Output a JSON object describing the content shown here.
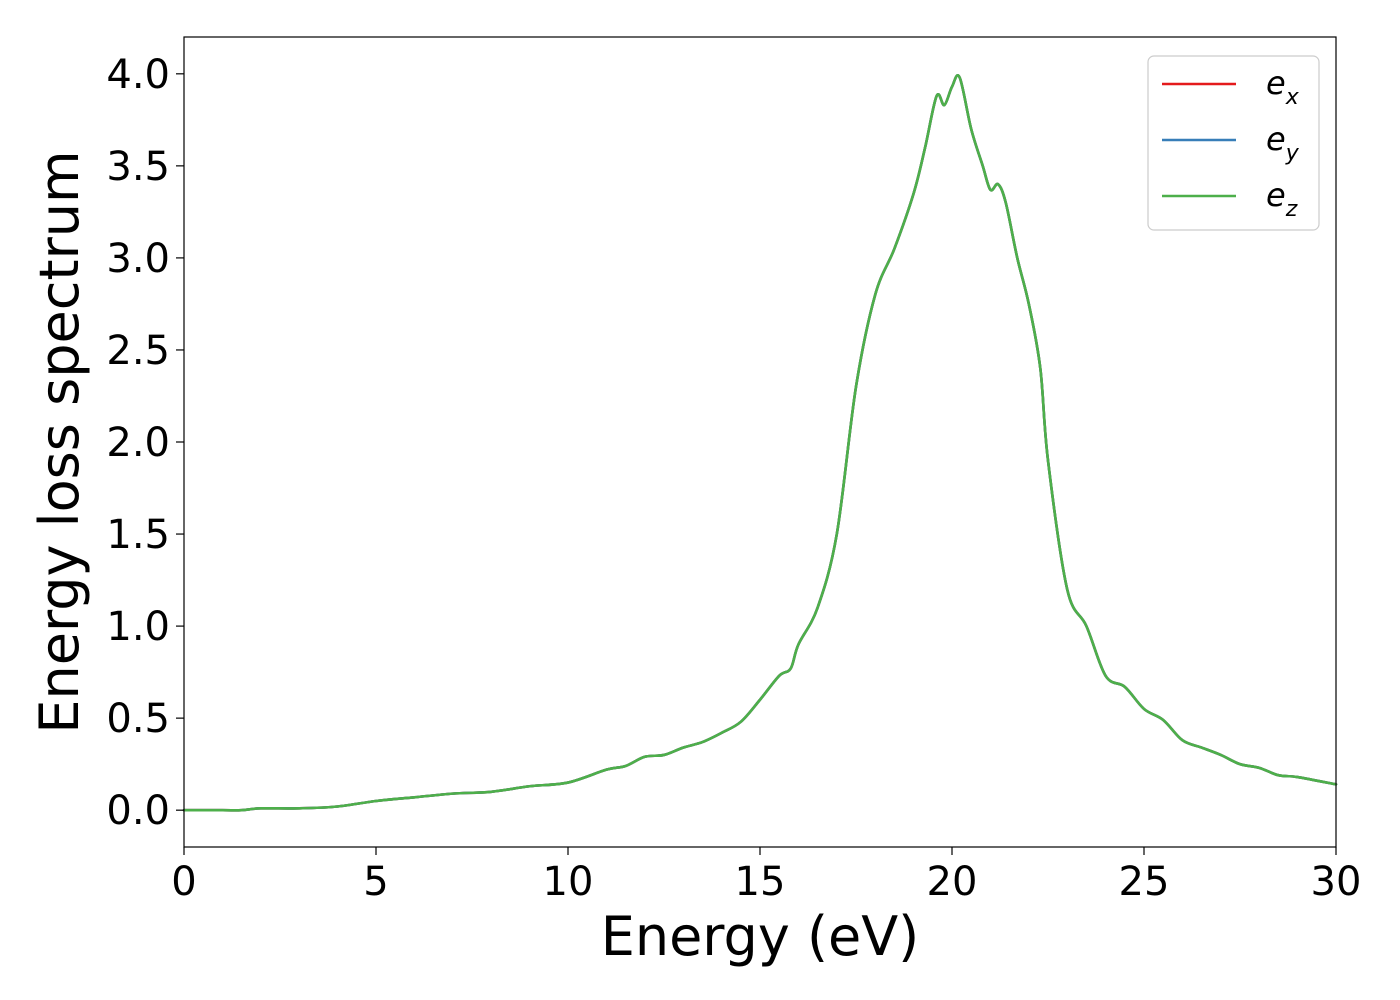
{
  "chart_data": {
    "type": "line",
    "title": "",
    "xlabel": "Energy (eV)",
    "ylabel": "Energy loss spectrum",
    "xlim": [
      0,
      30
    ],
    "ylim": [
      -0.2,
      4.2
    ],
    "xticks": [
      0,
      5,
      10,
      15,
      20,
      25,
      30
    ],
    "xtick_labels": [
      "0",
      "5",
      "10",
      "15",
      "20",
      "25",
      "30"
    ],
    "yticks": [
      0.0,
      0.5,
      1.0,
      1.5,
      2.0,
      2.5,
      3.0,
      3.5,
      4.0
    ],
    "ytick_labels": [
      "0.0",
      "0.5",
      "1.0",
      "1.5",
      "2.0",
      "2.5",
      "3.0",
      "3.5",
      "4.0"
    ],
    "grid": false,
    "legend_position": "top-right",
    "x": [
      0,
      1,
      1.5,
      2,
      3,
      4,
      5,
      6,
      7,
      8,
      9,
      10,
      11,
      11.5,
      12,
      12.5,
      13,
      13.5,
      14,
      14.5,
      15,
      15.5,
      15.8,
      16,
      16.5,
      17,
      17.5,
      18,
      18.5,
      19,
      19.3,
      19.6,
      19.8,
      20,
      20.2,
      20.5,
      20.8,
      21,
      21.2,
      21.4,
      21.7,
      22,
      22.3,
      22.5,
      23,
      23.5,
      24,
      24.5,
      25,
      25.5,
      26,
      26.5,
      27,
      27.5,
      28,
      28.5,
      29,
      30
    ],
    "series": [
      {
        "name": "e",
        "subscript": "x",
        "color": "#e41a1c",
        "values": [
          0.0,
          0.0,
          0.0,
          0.01,
          0.01,
          0.02,
          0.05,
          0.07,
          0.09,
          0.1,
          0.13,
          0.15,
          0.22,
          0.24,
          0.29,
          0.3,
          0.34,
          0.37,
          0.42,
          0.48,
          0.6,
          0.73,
          0.77,
          0.9,
          1.1,
          1.5,
          2.3,
          2.8,
          3.05,
          3.35,
          3.6,
          3.88,
          3.83,
          3.93,
          3.98,
          3.7,
          3.5,
          3.37,
          3.4,
          3.3,
          3.0,
          2.75,
          2.4,
          1.9,
          1.2,
          1.0,
          0.73,
          0.67,
          0.55,
          0.49,
          0.38,
          0.34,
          0.3,
          0.25,
          0.23,
          0.19,
          0.18,
          0.14
        ]
      },
      {
        "name": "e",
        "subscript": "y",
        "color": "#377eb8",
        "values": [
          0.0,
          0.0,
          0.0,
          0.01,
          0.01,
          0.02,
          0.05,
          0.07,
          0.09,
          0.1,
          0.13,
          0.15,
          0.22,
          0.24,
          0.29,
          0.3,
          0.34,
          0.37,
          0.42,
          0.48,
          0.6,
          0.73,
          0.77,
          0.9,
          1.1,
          1.5,
          2.3,
          2.8,
          3.05,
          3.35,
          3.6,
          3.88,
          3.83,
          3.93,
          3.98,
          3.7,
          3.5,
          3.37,
          3.4,
          3.3,
          3.0,
          2.75,
          2.4,
          1.9,
          1.2,
          1.0,
          0.73,
          0.67,
          0.55,
          0.49,
          0.38,
          0.34,
          0.3,
          0.25,
          0.23,
          0.19,
          0.18,
          0.14
        ]
      },
      {
        "name": "e",
        "subscript": "z",
        "color": "#4daf4a",
        "values": [
          0.0,
          0.0,
          0.0,
          0.01,
          0.01,
          0.02,
          0.05,
          0.07,
          0.09,
          0.1,
          0.13,
          0.15,
          0.22,
          0.24,
          0.29,
          0.3,
          0.34,
          0.37,
          0.42,
          0.48,
          0.6,
          0.73,
          0.77,
          0.9,
          1.1,
          1.5,
          2.3,
          2.8,
          3.05,
          3.35,
          3.6,
          3.88,
          3.83,
          3.93,
          3.98,
          3.7,
          3.5,
          3.37,
          3.4,
          3.3,
          3.0,
          2.75,
          2.4,
          1.9,
          1.2,
          1.0,
          0.73,
          0.67,
          0.55,
          0.49,
          0.38,
          0.34,
          0.3,
          0.25,
          0.23,
          0.19,
          0.18,
          0.14
        ]
      }
    ]
  }
}
